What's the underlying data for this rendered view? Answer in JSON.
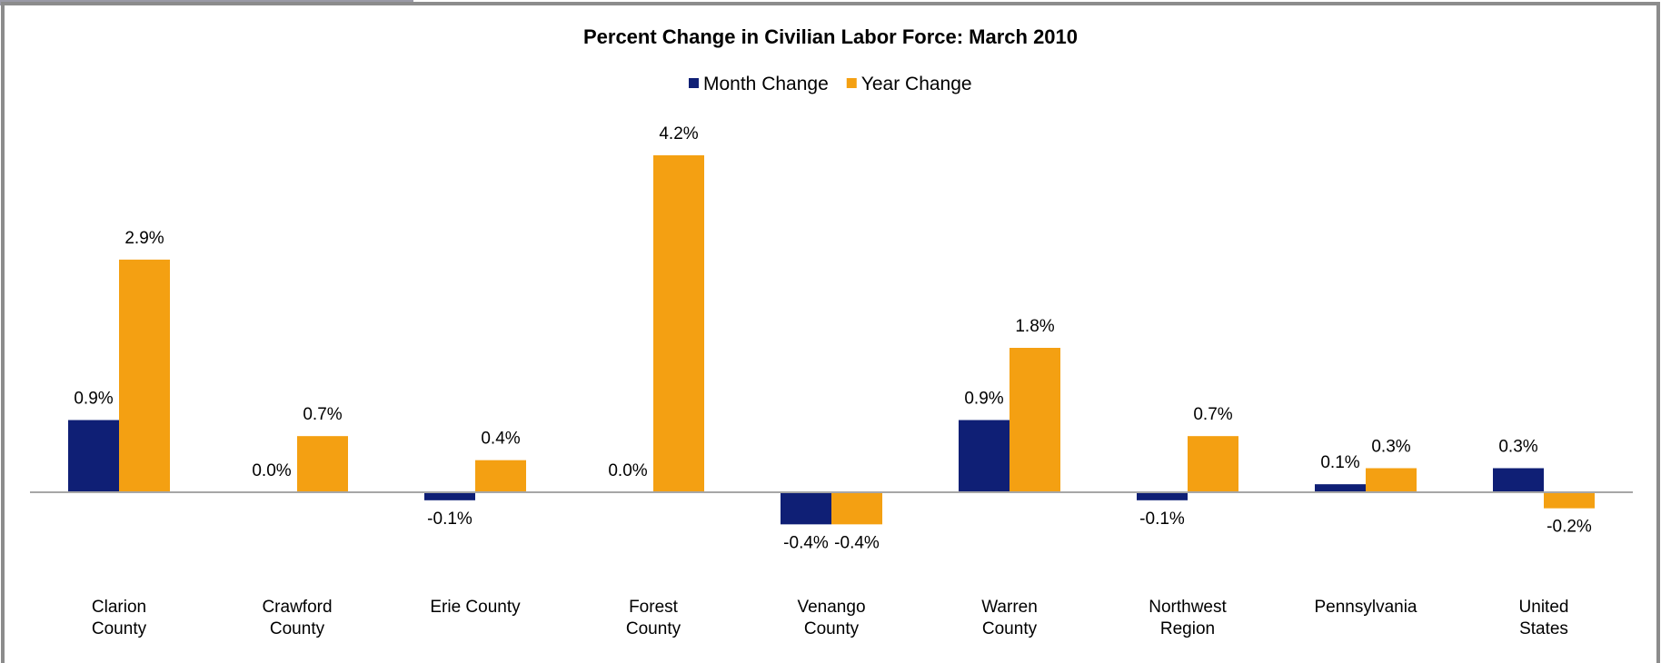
{
  "chart_data": {
    "type": "bar",
    "title": "Percent Change in Civilian Labor Force: March 2010",
    "categories": [
      "Clarion County",
      "Crawford County",
      "Erie County",
      "Forest County",
      "Venango County",
      "Warren County",
      "Northwest Region",
      "Pennsylvania",
      "United States"
    ],
    "series": [
      {
        "name": "Month Change",
        "color": "#0f1f75",
        "values": [
          0.9,
          0.0,
          -0.1,
          0.0,
          -0.4,
          0.9,
          -0.1,
          0.1,
          0.3
        ],
        "value_labels": [
          "0.9%",
          "0.0%",
          "-0.1%",
          "0.0%",
          "-0.4%",
          "0.9%",
          "-0.1%",
          "0.1%",
          "0.3%"
        ]
      },
      {
        "name": "Year Change",
        "color": "#f4a012",
        "values": [
          2.9,
          0.7,
          0.4,
          4.2,
          -0.4,
          1.8,
          0.7,
          0.3,
          -0.2
        ],
        "value_labels": [
          "2.9%",
          "0.7%",
          "0.4%",
          "4.2%",
          "-0.4%",
          "1.8%",
          "0.7%",
          "0.3%",
          "-0.2%"
        ]
      }
    ],
    "legend": "top"
  }
}
